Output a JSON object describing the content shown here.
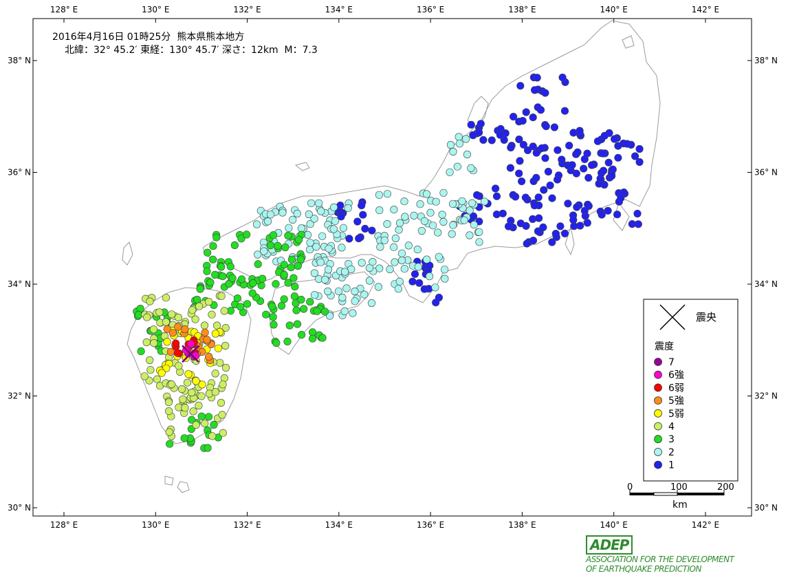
{
  "header": {
    "line1": "2016年4月16日 01時25分  熊本県熊本地方",
    "line2": "北緯：32° 45.2′ 東経：130° 45.7′ 深さ：12km  M：7.3"
  },
  "axes": {
    "lon_labels": [
      "128° E",
      "130° E",
      "132° E",
      "134° E",
      "136° E",
      "138° E",
      "140° E",
      "142° E"
    ],
    "lat_labels": [
      "38° N",
      "36° N",
      "34° N",
      "32° N",
      "30° N"
    ]
  },
  "epicenter": {
    "lat": 32.753,
    "lon": 130.762
  },
  "legend": {
    "epicenter_label": "震央",
    "title": "震度",
    "items": [
      {
        "label": "7",
        "color": "#990099"
      },
      {
        "label": "6強",
        "color": "#ff00cc"
      },
      {
        "label": "6弱",
        "color": "#ff0000"
      },
      {
        "label": "5強",
        "color": "#ff8c1a"
      },
      {
        "label": "5弱",
        "color": "#ffff00"
      },
      {
        "label": "4",
        "color": "#ccee66"
      },
      {
        "label": "3",
        "color": "#22dd22"
      },
      {
        "label": "2",
        "color": "#aaf5f0"
      },
      {
        "label": "1",
        "color": "#2222ee"
      }
    ]
  },
  "scale_bar": {
    "labels": [
      "0",
      "100",
      "200"
    ],
    "unit": "km"
  },
  "logo": {
    "mark": "ADEP",
    "line1": "ASSOCIATION  FOR THE DEVELOPMENT",
    "line2": "OF EARTHQUAKE PREDICTION"
  }
}
